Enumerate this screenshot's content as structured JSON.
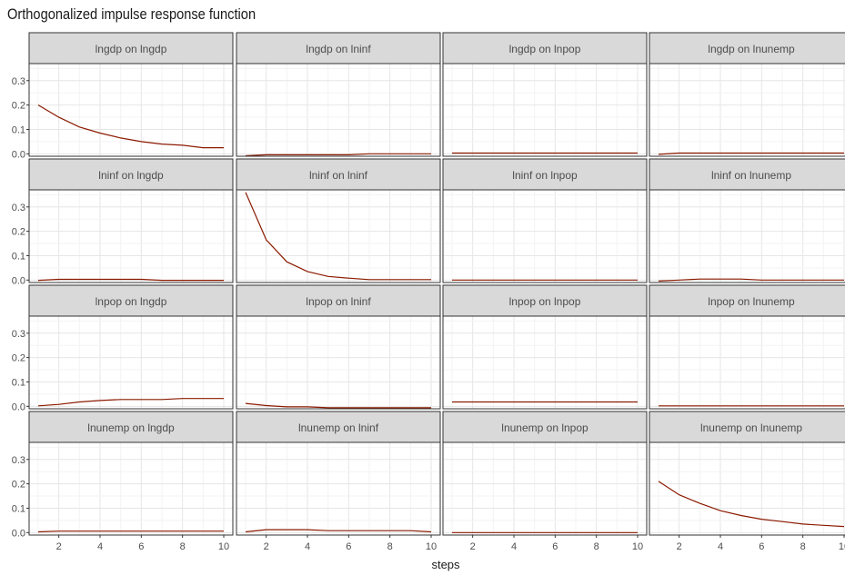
{
  "chart_data": {
    "type": "line",
    "title": "Orthogonalized impulse response function",
    "xlabel": "steps",
    "ylabel": "",
    "x": [
      1,
      2,
      3,
      4,
      5,
      6,
      7,
      8,
      9,
      10
    ],
    "xlim": [
      1,
      10
    ],
    "ylim": [
      -0.01,
      0.37
    ],
    "x_ticks": [
      "2",
      "4",
      "6",
      "8",
      "10"
    ],
    "y_ticks": [
      "0.0",
      "0.1",
      "0.2",
      "0.3"
    ],
    "line_color": "#8B1A00",
    "strip_fill": "#D9D9D9",
    "grid": true,
    "panels": [
      {
        "label": "lngdp on lngdp",
        "values": [
          0.2,
          0.15,
          0.11,
          0.085,
          0.065,
          0.05,
          0.04,
          0.035,
          0.025,
          0.025
        ]
      },
      {
        "label": "lngdp on lninf",
        "values": [
          -0.008,
          -0.004,
          -0.004,
          -0.004,
          -0.004,
          -0.004,
          0.0,
          0.0,
          0.0,
          0.0
        ]
      },
      {
        "label": "lngdp on lnpop",
        "values": [
          0.003,
          0.003,
          0.003,
          0.003,
          0.003,
          0.003,
          0.003,
          0.003,
          0.003,
          0.003
        ]
      },
      {
        "label": "lngdp on lnunemp",
        "values": [
          -0.002,
          0.003,
          0.003,
          0.003,
          0.003,
          0.003,
          0.003,
          0.003,
          0.003,
          0.003
        ]
      },
      {
        "label": "lninf on lngdp",
        "values": [
          -0.001,
          0.003,
          0.003,
          0.003,
          0.003,
          0.003,
          -0.001,
          -0.001,
          -0.001,
          -0.001
        ]
      },
      {
        "label": "lninf on lninf",
        "values": [
          0.36,
          0.165,
          0.075,
          0.035,
          0.015,
          0.008,
          0.002,
          0.002,
          0.002,
          0.002
        ]
      },
      {
        "label": "lninf on lnpop",
        "values": [
          0.0,
          0.0,
          0.0,
          0.0,
          0.0,
          0.0,
          0.0,
          0.0,
          0.0,
          0.0
        ]
      },
      {
        "label": "lninf on lnunemp",
        "values": [
          -0.004,
          0.0,
          0.004,
          0.004,
          0.004,
          0.0,
          0.0,
          0.0,
          0.0,
          0.0
        ]
      },
      {
        "label": "lnpop on lngdp",
        "values": [
          0.002,
          0.008,
          0.018,
          0.024,
          0.028,
          0.028,
          0.028,
          0.032,
          0.032,
          0.032
        ]
      },
      {
        "label": "lnpop on lninf",
        "values": [
          0.012,
          0.003,
          -0.002,
          -0.002,
          -0.006,
          -0.006,
          -0.006,
          -0.006,
          -0.006,
          -0.006
        ]
      },
      {
        "label": "lnpop on lnpop",
        "values": [
          0.018,
          0.018,
          0.018,
          0.018,
          0.018,
          0.018,
          0.018,
          0.018,
          0.018,
          0.018
        ]
      },
      {
        "label": "lnpop on lnunemp",
        "values": [
          0.002,
          0.002,
          0.002,
          0.002,
          0.002,
          0.002,
          0.002,
          0.002,
          0.002,
          0.002
        ]
      },
      {
        "label": "lnunemp on lngdp",
        "values": [
          0.003,
          0.006,
          0.006,
          0.006,
          0.006,
          0.006,
          0.006,
          0.006,
          0.006,
          0.006
        ]
      },
      {
        "label": "lnunemp on lninf",
        "values": [
          0.003,
          0.012,
          0.012,
          0.012,
          0.008,
          0.008,
          0.008,
          0.008,
          0.008,
          0.003
        ]
      },
      {
        "label": "lnunemp on lnpop",
        "values": [
          0.0,
          0.0,
          0.0,
          0.0,
          0.0,
          0.0,
          0.0,
          0.0,
          0.0,
          0.0
        ]
      },
      {
        "label": "lnunemp on lnunemp",
        "values": [
          0.21,
          0.155,
          0.12,
          0.09,
          0.07,
          0.055,
          0.045,
          0.035,
          0.03,
          0.025
        ]
      }
    ]
  }
}
